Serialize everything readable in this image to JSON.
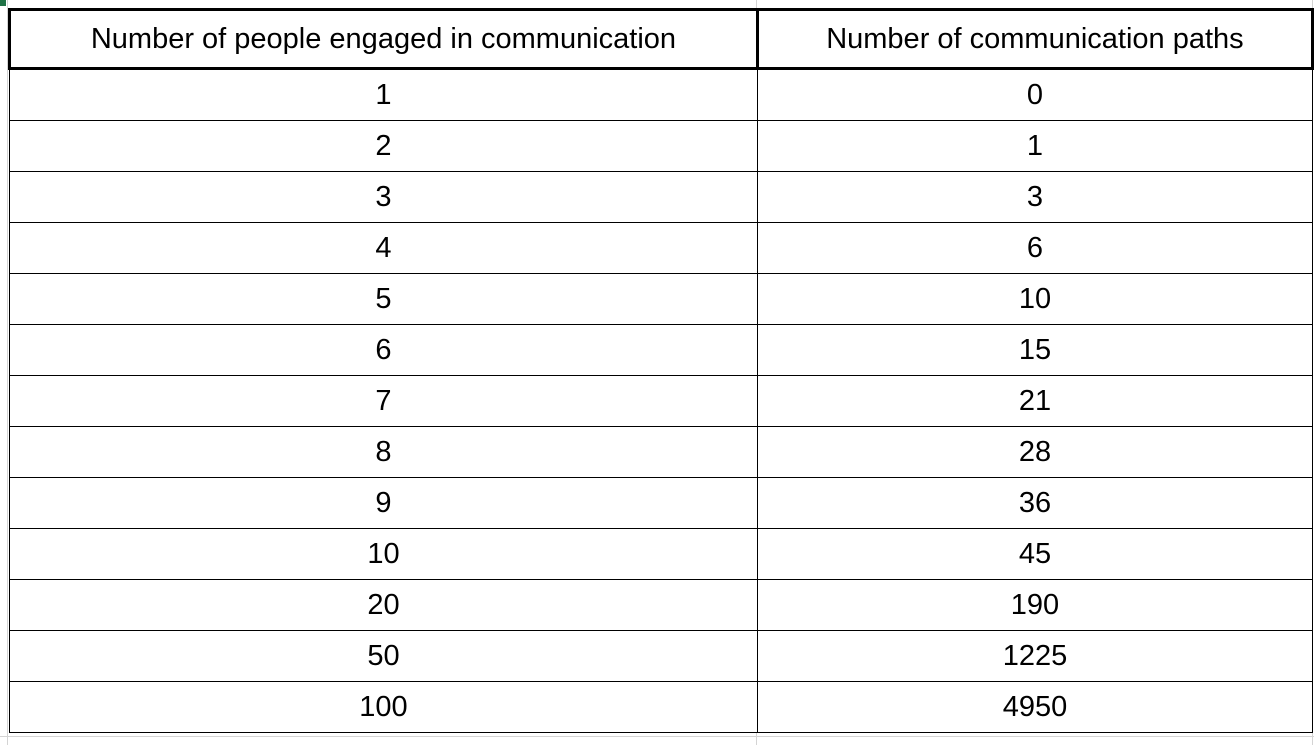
{
  "table": {
    "headers": [
      "Number of people engaged in communication",
      "Number of communication paths"
    ],
    "rows": [
      [
        "1",
        "0"
      ],
      [
        "2",
        "1"
      ],
      [
        "3",
        "3"
      ],
      [
        "4",
        "6"
      ],
      [
        "5",
        "10"
      ],
      [
        "6",
        "15"
      ],
      [
        "7",
        "21"
      ],
      [
        "8",
        "28"
      ],
      [
        "9",
        "36"
      ],
      [
        "10",
        "45"
      ],
      [
        "20",
        "190"
      ],
      [
        "50",
        "1225"
      ],
      [
        "100",
        "4950"
      ]
    ]
  },
  "colors": {
    "border": "#000000",
    "gridline": "#d4d4d4",
    "selection_marker": "#1e7145",
    "background": "#ffffff"
  }
}
